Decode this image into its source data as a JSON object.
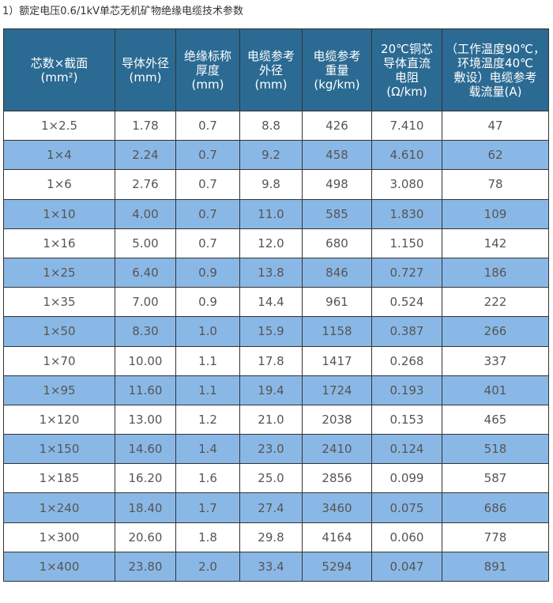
{
  "title": "1）额定电压0.6/1kV单芯无机矿物绝缘电缆技术参数",
  "headers": [
    "芯数×截面\n(mm²)",
    "导体外径\n(mm)",
    "绝缘标称\n厚度\n(mm)",
    "电缆参考\n外径\n(mm)",
    "电缆参考\n重量\n(kg/km)",
    "20℃铜芯\n导体直流\n电阻\n(Ω/km)",
    "（工作温度90℃，\n环境温度40℃\n敷设）电缆参考\n载流量(A)"
  ],
  "rows": [
    [
      "1×2.5",
      "1.78",
      "0.7",
      "8.8",
      "426",
      "7.410",
      "47"
    ],
    [
      "1×4",
      "2.24",
      "0.7",
      "9.2",
      "458",
      "4.610",
      "62"
    ],
    [
      "1×6",
      "2.76",
      "0.7",
      "9.8",
      "498",
      "3.080",
      "78"
    ],
    [
      "1×10",
      "4.00",
      "0.7",
      "11.0",
      "585",
      "1.830",
      "109"
    ],
    [
      "1×16",
      "5.00",
      "0.7",
      "12.0",
      "680",
      "1.150",
      "142"
    ],
    [
      "1×25",
      "6.40",
      "0.9",
      "13.8",
      "846",
      "0.727",
      "186"
    ],
    [
      "1×35",
      "7.00",
      "0.9",
      "14.4",
      "961",
      "0.524",
      "222"
    ],
    [
      "1×50",
      "8.30",
      "1.0",
      "15.9",
      "1158",
      "0.387",
      "266"
    ],
    [
      "1×70",
      "10.00",
      "1.1",
      "17.8",
      "1417",
      "0.268",
      "337"
    ],
    [
      "1×95",
      "11.60",
      "1.1",
      "19.4",
      "1724",
      "0.193",
      "401"
    ],
    [
      "1×120",
      "13.00",
      "1.2",
      "21.0",
      "2038",
      "0.153",
      "465"
    ],
    [
      "1×150",
      "14.60",
      "1.4",
      "23.0",
      "2410",
      "0.124",
      "518"
    ],
    [
      "1×185",
      "16.20",
      "1.6",
      "25.0",
      "2856",
      "0.099",
      "587"
    ],
    [
      "1×240",
      "18.40",
      "1.7",
      "27.4",
      "3460",
      "0.075",
      "686"
    ],
    [
      "1×300",
      "20.60",
      "1.8",
      "29.8",
      "4164",
      "0.060",
      "778"
    ],
    [
      "1×400",
      "23.80",
      "2.0",
      "33.4",
      "5294",
      "0.047",
      "891"
    ]
  ],
  "colors": {
    "header": "#2b6a92",
    "stripe": "#8ab8e6"
  }
}
